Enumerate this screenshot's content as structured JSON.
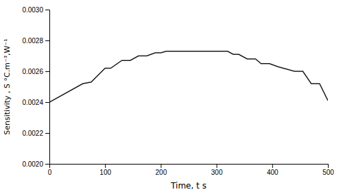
{
  "chart_data": {
    "type": "line",
    "x": [
      0,
      60,
      75,
      100,
      110,
      130,
      145,
      160,
      175,
      190,
      200,
      210,
      320,
      330,
      340,
      355,
      370,
      380,
      395,
      410,
      420,
      440,
      455,
      470,
      485,
      500
    ],
    "values": [
      0.0024,
      0.00252,
      0.00253,
      0.00262,
      0.00262,
      0.00267,
      0.00267,
      0.0027,
      0.0027,
      0.00272,
      0.00272,
      0.00273,
      0.00273,
      0.00271,
      0.00271,
      0.00268,
      0.00268,
      0.00265,
      0.00265,
      0.00263,
      0.00262,
      0.0026,
      0.0026,
      0.00252,
      0.00252,
      0.00241
    ],
    "color": "#1a1a1a",
    "xlabel": "Time, t s",
    "ylabel": "Sensitivity , S °C.m⁻³,W⁻¹",
    "xlim": [
      0,
      500
    ],
    "ylim": [
      0.002,
      0.003
    ],
    "xticks": [
      0,
      100,
      200,
      300,
      400,
      500
    ],
    "yticks": [
      {
        "value": 0.002,
        "label": "0.0020"
      },
      0.0022,
      0.0024,
      0.0026,
      0.0028,
      {
        "value": 0.003,
        "label": "0.0030"
      }
    ],
    "grid": false
  }
}
